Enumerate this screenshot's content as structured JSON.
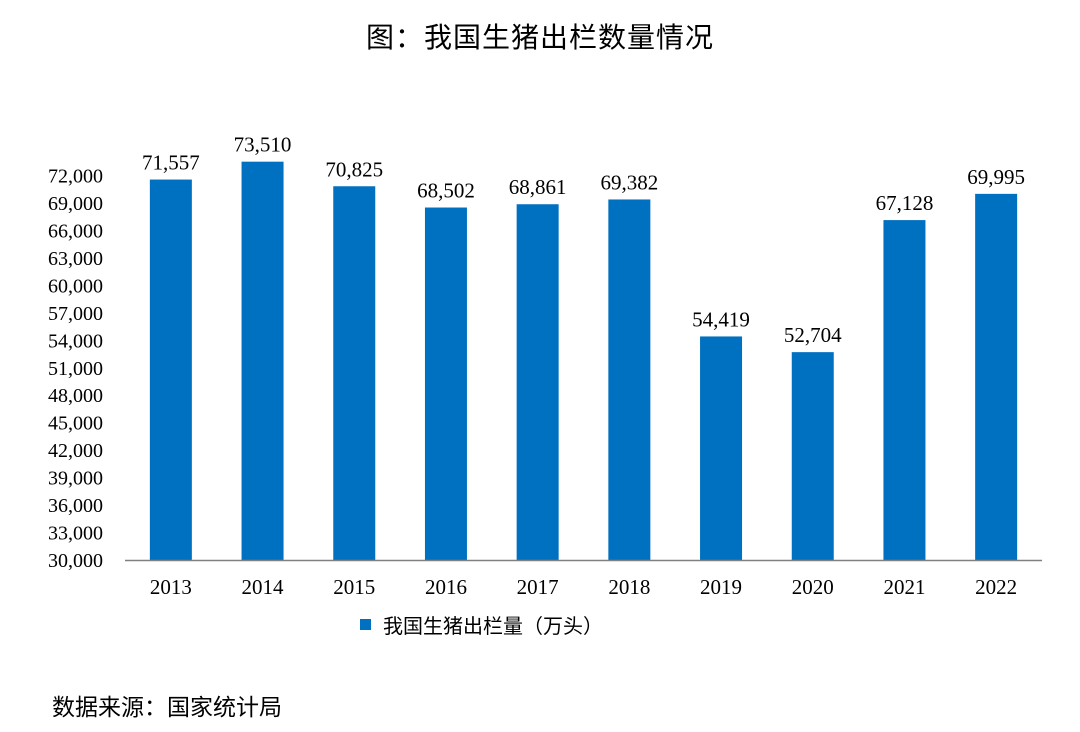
{
  "title": "图：我国生猪出栏数量情况",
  "source": "数据来源：国家统计局",
  "colors": {
    "bar": "#0070c0",
    "axis": "#808080"
  },
  "chart_data": {
    "type": "bar",
    "title": "图：我国生猪出栏数量情况",
    "categories": [
      "2013",
      "2014",
      "2015",
      "2016",
      "2017",
      "2018",
      "2019",
      "2020",
      "2021",
      "2022"
    ],
    "series": [
      {
        "name": "我国生猪出栏量（万头）",
        "values": [
          71557,
          73510,
          70825,
          68502,
          68861,
          69382,
          54419,
          52704,
          67128,
          69995
        ],
        "value_labels": [
          "71,557",
          "73,510",
          "70,825",
          "68,502",
          "68,861",
          "69,382",
          "54,419",
          "52,704",
          "67,128",
          "69,995"
        ]
      }
    ],
    "ylim": [
      30000,
      72000
    ],
    "yticks": [
      "30,000",
      "33,000",
      "36,000",
      "39,000",
      "42,000",
      "45,000",
      "48,000",
      "51,000",
      "54,000",
      "57,000",
      "60,000",
      "63,000",
      "66,000",
      "69,000",
      "72,000"
    ],
    "ytick_values": [
      30000,
      33000,
      36000,
      39000,
      42000,
      45000,
      48000,
      51000,
      54000,
      57000,
      60000,
      63000,
      66000,
      69000,
      72000
    ],
    "grid": false,
    "legend": "bottom-center"
  }
}
